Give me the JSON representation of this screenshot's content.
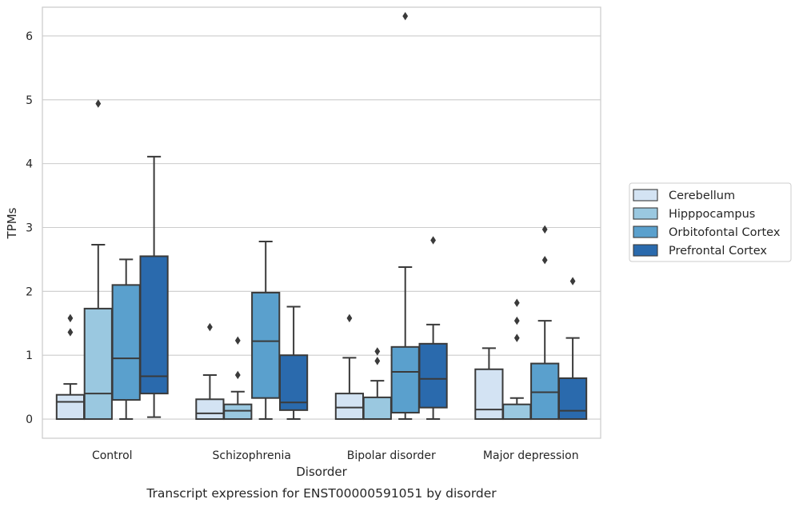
{
  "chart_data": {
    "type": "box",
    "caption": "Transcript expression for ENST00000591051 by disorder",
    "xlabel": "Disorder",
    "ylabel": "TPMs",
    "ylim": [
      -0.3,
      6.45
    ],
    "yticks": [
      0,
      1,
      2,
      3,
      4,
      5,
      6
    ],
    "grid": "horizontal",
    "legend_position": "right",
    "categories": [
      "Control",
      "Schizophrenia",
      "Bipolar disorder",
      "Major depression"
    ],
    "series": [
      {
        "name": "Cerebellum",
        "color": "#d3e3f3",
        "boxes": [
          {
            "whislo": 0.0,
            "q1": 0.0,
            "med": 0.27,
            "q3": 0.38,
            "whishi": 0.55,
            "fliers": [
              1.36,
              1.58
            ]
          },
          {
            "whislo": 0.0,
            "q1": 0.0,
            "med": 0.09,
            "q3": 0.31,
            "whishi": 0.69,
            "fliers": [
              1.44
            ]
          },
          {
            "whislo": 0.0,
            "q1": 0.0,
            "med": 0.18,
            "q3": 0.4,
            "whishi": 0.96,
            "fliers": [
              1.58
            ]
          },
          {
            "whislo": 0.0,
            "q1": 0.0,
            "med": 0.15,
            "q3": 0.78,
            "whishi": 1.11,
            "fliers": []
          }
        ]
      },
      {
        "name": "Hipppocampus",
        "color": "#9ac8e0",
        "boxes": [
          {
            "whislo": 0.0,
            "q1": 0.0,
            "med": 0.4,
            "q3": 1.73,
            "whishi": 2.73,
            "fliers": [
              4.94
            ]
          },
          {
            "whislo": 0.0,
            "q1": 0.0,
            "med": 0.13,
            "q3": 0.23,
            "whishi": 0.43,
            "fliers": [
              0.69,
              1.23
            ]
          },
          {
            "whislo": 0.0,
            "q1": 0.0,
            "med": 0.0,
            "q3": 0.34,
            "whishi": 0.6,
            "fliers": [
              0.91,
              1.06
            ]
          },
          {
            "whislo": 0.0,
            "q1": 0.0,
            "med": 0.0,
            "q3": 0.23,
            "whishi": 0.33,
            "fliers": [
              1.27,
              1.54,
              1.82
            ]
          }
        ]
      },
      {
        "name": "Orbitofontal Cortex",
        "color": "#5aa0cd",
        "boxes": [
          {
            "whislo": 0.0,
            "q1": 0.3,
            "med": 0.95,
            "q3": 2.1,
            "whishi": 2.5,
            "fliers": []
          },
          {
            "whislo": 0.0,
            "q1": 0.33,
            "med": 1.22,
            "q3": 1.98,
            "whishi": 2.78,
            "fliers": []
          },
          {
            "whislo": 0.0,
            "q1": 0.1,
            "med": 0.74,
            "q3": 1.13,
            "whishi": 2.38,
            "fliers": [
              6.31
            ]
          },
          {
            "whislo": 0.0,
            "q1": 0.0,
            "med": 0.42,
            "q3": 0.87,
            "whishi": 1.54,
            "fliers": [
              2.49,
              2.97
            ]
          }
        ]
      },
      {
        "name": "Prefrontal Cortex",
        "color": "#2a6aad",
        "boxes": [
          {
            "whislo": 0.03,
            "q1": 0.4,
            "med": 0.67,
            "q3": 2.55,
            "whishi": 4.11,
            "fliers": []
          },
          {
            "whislo": 0.0,
            "q1": 0.14,
            "med": 0.26,
            "q3": 1.0,
            "whishi": 1.76,
            "fliers": []
          },
          {
            "whislo": 0.0,
            "q1": 0.18,
            "med": 0.63,
            "q3": 1.18,
            "whishi": 1.48,
            "fliers": [
              2.8
            ]
          },
          {
            "whislo": 0.0,
            "q1": 0.0,
            "med": 0.13,
            "q3": 0.64,
            "whishi": 1.27,
            "fliers": [
              2.16
            ]
          }
        ]
      }
    ]
  }
}
